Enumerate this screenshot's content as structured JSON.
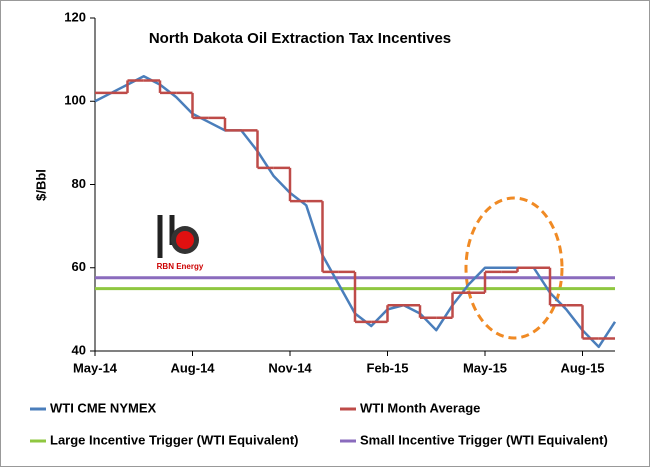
{
  "chart_data": {
    "type": "line",
    "title": "North Dakota Oil Extraction Tax Incentives",
    "y_label": "$/Bbl",
    "logo_text": "RBN Energy",
    "categories": [
      "May-14",
      null,
      null,
      null,
      null,
      null,
      "Aug-14",
      null,
      null,
      null,
      null,
      null,
      "Nov-14",
      null,
      null,
      null,
      null,
      null,
      "Feb-15",
      null,
      null,
      null,
      null,
      null,
      "May-15",
      null,
      null,
      null,
      null,
      null,
      "Aug-15",
      null,
      null
    ],
    "series": [
      {
        "name": "WTI CME NYMEX",
        "color": "#4a7ebb",
        "style": "line",
        "values": [
          100,
          102,
          104,
          106,
          104,
          101,
          97,
          95,
          93,
          93,
          88,
          82,
          78,
          75,
          63,
          56,
          49,
          46,
          50,
          51,
          49,
          45,
          51,
          56,
          60,
          60,
          60,
          60,
          54,
          50,
          45,
          41,
          47
        ]
      },
      {
        "name": "WTI Month Average",
        "color": "#be4b48",
        "style": "step",
        "values": [
          102,
          102,
          105,
          105,
          102,
          102,
          96,
          96,
          93,
          93,
          84,
          84,
          76,
          76,
          59,
          59,
          47,
          47,
          51,
          51,
          48,
          48,
          54,
          54,
          59,
          59,
          60,
          60,
          51,
          51,
          43,
          43,
          43
        ]
      }
    ],
    "references": [
      {
        "name": "Large Incentive Trigger (WTI Equivalent)",
        "color": "#8fc740",
        "value": 55
      },
      {
        "name": "Small Incentive Trigger (WTI Equivalent)",
        "color": "#8a6bbd",
        "value": 57.6
      }
    ],
    "ylim": [
      40,
      120
    ],
    "yticks": [
      40,
      60,
      80,
      100,
      120
    ],
    "grid": false
  }
}
